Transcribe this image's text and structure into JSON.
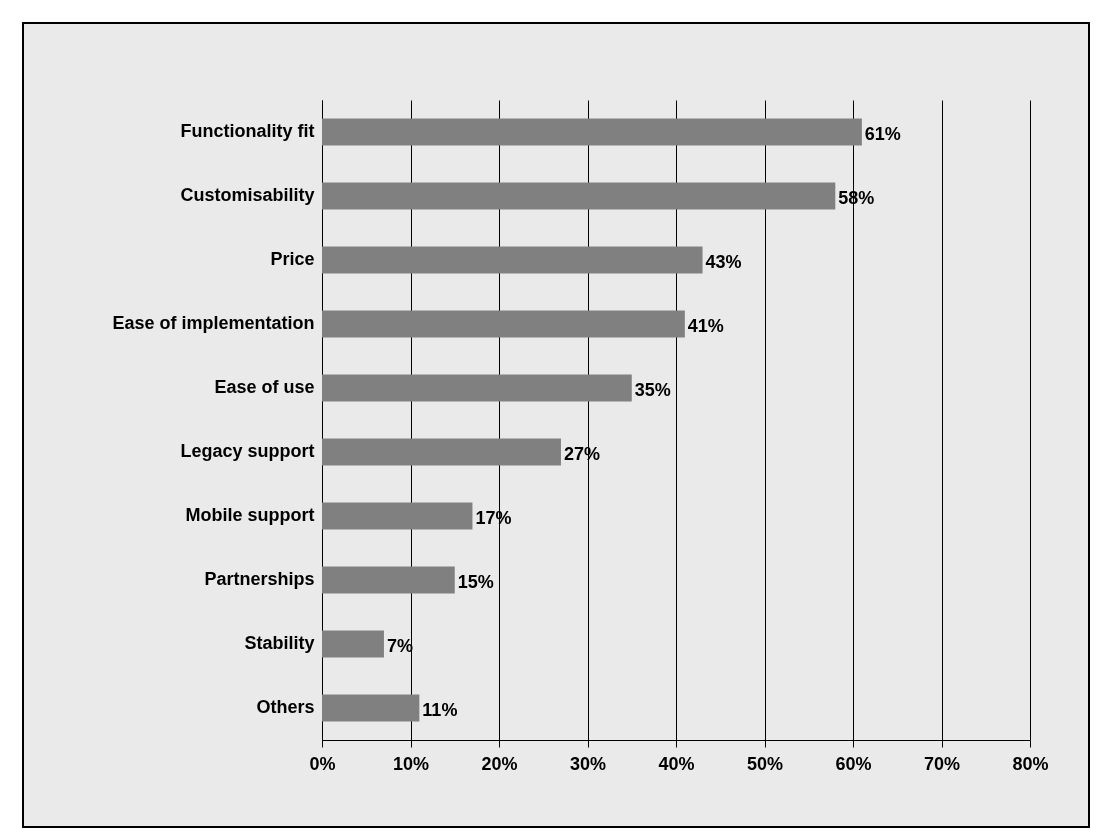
{
  "chart_data": {
    "type": "bar",
    "orientation": "horizontal",
    "categories": [
      "Functionality fit",
      "Customisability",
      "Price",
      "Ease of implementation",
      "Ease of use",
      "Legacy support",
      "Mobile support",
      "Partnerships",
      "Stability",
      "Others"
    ],
    "values": [
      61,
      58,
      43,
      41,
      35,
      27,
      17,
      15,
      7,
      11
    ],
    "value_labels": [
      "61%",
      "58%",
      "43%",
      "41%",
      "35%",
      "27%",
      "17%",
      "15%",
      "7%",
      "11%"
    ],
    "color": "#808080",
    "xlim": [
      0,
      80
    ],
    "xticks": [
      {
        "value": 0,
        "label": "0%"
      },
      {
        "value": 10,
        "label": "10%"
      },
      {
        "value": 20,
        "label": "20%"
      },
      {
        "value": 30,
        "label": "30%"
      },
      {
        "value": 40,
        "label": "40%"
      },
      {
        "value": 50,
        "label": "50%"
      },
      {
        "value": 60,
        "label": "60%"
      },
      {
        "value": 70,
        "label": "70%"
      },
      {
        "value": 80,
        "label": "80%"
      }
    ],
    "grid": "x"
  }
}
